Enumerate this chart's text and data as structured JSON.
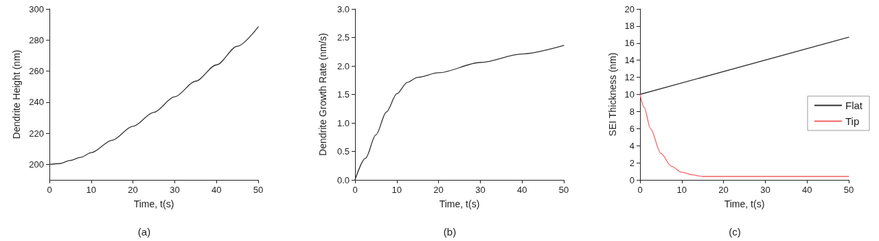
{
  "chart_data": [
    {
      "type": "line",
      "xlabel": "Time, t(s)",
      "ylabel": "Dendrite Height (nm)",
      "annotations": [
        "(a)"
      ],
      "xlim": [
        0,
        50
      ],
      "xticks": [
        0,
        10,
        20,
        30,
        40,
        50
      ],
      "ylim": [
        190,
        300
      ],
      "yticks": [
        200,
        220,
        240,
        260,
        280,
        300
      ],
      "grid": false,
      "legend": false,
      "marker": "none",
      "series": [
        {
          "color": "#333333",
          "x": [
            0,
            2.5,
            5,
            7.5,
            10,
            15,
            20,
            25,
            30,
            35,
            40,
            45,
            50
          ],
          "values": [
            200,
            200.5,
            202.5,
            204.5,
            207.5,
            215.5,
            224.5,
            233.5,
            243.5,
            253.5,
            264,
            276,
            288.5
          ]
        }
      ]
    },
    {
      "type": "line",
      "xlabel": "Time, t(s)",
      "ylabel": "Dendrite Growth Rate (nm/s)",
      "annotations": [
        "(b)"
      ],
      "xlim": [
        0,
        50
      ],
      "xticks": [
        0,
        10,
        20,
        30,
        40,
        50
      ],
      "ylim": [
        0,
        3
      ],
      "yticks": [
        {
          "value": 0,
          "label": "0.0"
        },
        0.5,
        {
          "value": 1,
          "label": "1.0"
        },
        1.5,
        {
          "value": 2,
          "label": "2.0"
        },
        2.5,
        {
          "value": 3,
          "label": "3.0"
        }
      ],
      "grid": false,
      "legend": false,
      "marker": "none",
      "series": [
        {
          "color": "#333333",
          "x": [
            0,
            2.5,
            5,
            7.5,
            10,
            12.5,
            15,
            20,
            30,
            40,
            50
          ],
          "values": [
            0,
            0.38,
            0.79,
            1.19,
            1.51,
            1.71,
            1.8,
            1.88,
            2.06,
            2.21,
            2.36
          ]
        }
      ]
    },
    {
      "type": "line",
      "xlabel": "Time, t(s)",
      "ylabel": "SEI Thickness (nm)",
      "annotations": [
        "(c)"
      ],
      "xlim": [
        0,
        50
      ],
      "xticks": [
        0,
        10,
        20,
        30,
        40,
        50
      ],
      "ylim": [
        0,
        20
      ],
      "yticks": [
        0,
        2,
        4,
        6,
        8,
        10,
        12,
        14,
        16,
        18,
        20
      ],
      "grid": false,
      "legend": "right",
      "marker": "none",
      "series": [
        {
          "name": "Flat",
          "color": "#333333",
          "x": [
            0,
            50
          ],
          "values": [
            10,
            16.7
          ]
        },
        {
          "name": "Tip",
          "color": "#f06464",
          "x": [
            0,
            1,
            2.5,
            5,
            7.5,
            10,
            12.5,
            15,
            20,
            30,
            40,
            50
          ],
          "values": [
            10,
            8.5,
            6,
            3.1,
            1.6,
            0.9,
            0.6,
            0.4,
            0.4,
            0.4,
            0.4,
            0.4
          ]
        }
      ]
    }
  ]
}
